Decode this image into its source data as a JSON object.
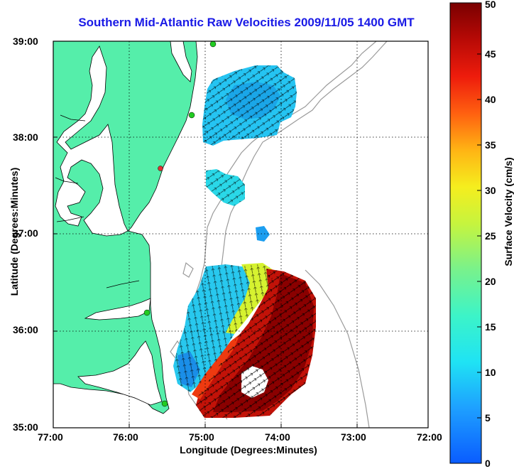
{
  "title": "Southern Mid-Atlantic Raw Velocities 2009/11/05 1400 GMT",
  "xlabel": "Longitude (Degrees:Minutes)",
  "ylabel": "Latitude (Degrees:Minutes)",
  "colorbar": {
    "label": "Surface Velocity (cm/s)",
    "ticks": [
      "0",
      "5",
      "10",
      "15",
      "20",
      "25",
      "30",
      "35",
      "40",
      "45",
      "50"
    ]
  },
  "axes": {
    "lat_ticks": [
      "39:00",
      "38:00",
      "37:00",
      "36:00",
      "35:00"
    ],
    "lon_ticks": [
      "77:00",
      "76:00",
      "75:00",
      "74:00",
      "73:00",
      "72:00"
    ]
  },
  "colors": {
    "land": "#55eeaa",
    "coast": "#000000",
    "bathymetry": "#9a9a9a",
    "title": "#1a1ae6",
    "station": "#22cc22",
    "station_alt": "#dd3333"
  }
}
